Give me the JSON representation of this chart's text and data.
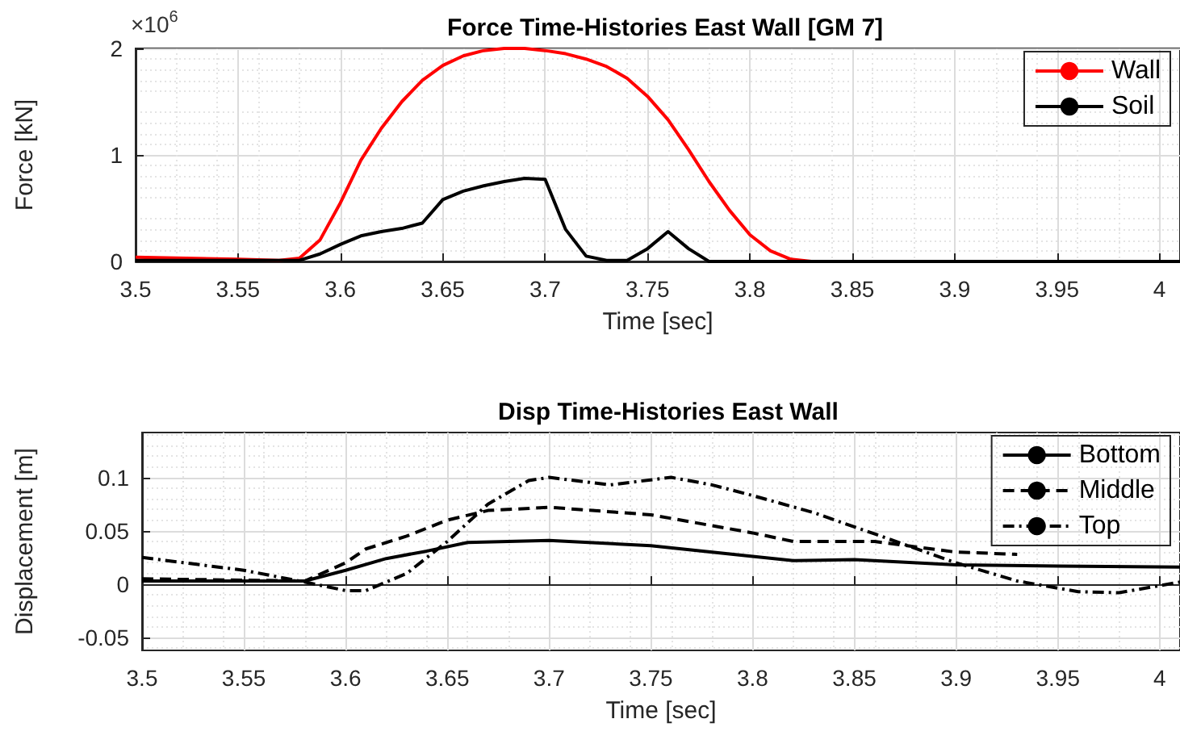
{
  "chart_data": [
    {
      "type": "line",
      "title": "Force Time-Histories East Wall [GM 7]",
      "xlabel": "Time [sec]",
      "ylabel": "Force [kN]",
      "annotations": [
        "×10$^{6}$"
      ],
      "series": [
        {
          "name": "Wall",
          "color": "#ff0000",
          "line_style": "solid",
          "x": [
            3.5,
            3.55,
            3.57,
            3.58,
            3.59,
            3.6,
            3.61,
            3.62,
            3.63,
            3.64,
            3.65,
            3.66,
            3.67,
            3.68,
            3.69,
            3.7,
            3.71,
            3.72,
            3.73,
            3.74,
            3.75,
            3.76,
            3.77,
            3.78,
            3.79,
            3.8,
            3.81,
            3.82,
            3.83,
            4.01
          ],
          "values": [
            0.04,
            0.02,
            0.01,
            0.03,
            0.2,
            0.55,
            0.95,
            1.25,
            1.5,
            1.7,
            1.84,
            1.93,
            1.98,
            2.0,
            2.0,
            1.98,
            1.95,
            1.9,
            1.83,
            1.72,
            1.55,
            1.33,
            1.05,
            0.75,
            0.48,
            0.25,
            0.1,
            0.02,
            0,
            0
          ]
        },
        {
          "name": "Soil",
          "color": "#000000",
          "line_style": "solid",
          "x": [
            3.5,
            3.58,
            3.59,
            3.6,
            3.61,
            3.62,
            3.63,
            3.64,
            3.65,
            3.66,
            3.67,
            3.68,
            3.69,
            3.7,
            3.71,
            3.72,
            3.73,
            3.74,
            3.75,
            3.76,
            3.77,
            3.78,
            4.01
          ],
          "values": [
            0.01,
            0.01,
            0.07,
            0.16,
            0.24,
            0.28,
            0.31,
            0.36,
            0.58,
            0.66,
            0.71,
            0.75,
            0.78,
            0.77,
            0.3,
            0.05,
            0.01,
            0.01,
            0.12,
            0.28,
            0.12,
            0,
            0
          ]
        }
      ],
      "xlim": [
        3.5,
        4.01
      ],
      "xticks": [
        3.5,
        3.55,
        3.6,
        3.65,
        3.7,
        3.75,
        3.8,
        3.85,
        3.9,
        3.95,
        4
      ],
      "ylim": [
        0,
        2
      ],
      "yticks": [
        0,
        1,
        2
      ],
      "grid": true,
      "legend": "top right",
      "marker": "none"
    },
    {
      "type": "line",
      "title": "Disp Time-Histories East Wall",
      "xlabel": "Time [sec]",
      "ylabel": "Displacement [m]",
      "series": [
        {
          "name": "Bottom",
          "color": "#000000",
          "line_style": "solid",
          "x": [
            3.5,
            3.58,
            3.6,
            3.62,
            3.64,
            3.66,
            3.7,
            3.75,
            3.8,
            3.82,
            3.85,
            3.9,
            3.95,
            4.01
          ],
          "values": [
            0.003,
            0.003,
            0.013,
            0.024,
            0.031,
            0.039,
            0.041,
            0.036,
            0.026,
            0.022,
            0.023,
            0.018,
            0.017,
            0.016
          ]
        },
        {
          "name": "Middle",
          "color": "#000000",
          "line_style": "dashed",
          "x": [
            3.5,
            3.58,
            3.6,
            3.61,
            3.63,
            3.65,
            3.67,
            3.7,
            3.75,
            3.8,
            3.82,
            3.86,
            3.9,
            3.93
          ],
          "values": [
            0.005,
            0.003,
            0.02,
            0.033,
            0.045,
            0.06,
            0.069,
            0.072,
            0.065,
            0.048,
            0.04,
            0.04,
            0.03,
            0.028
          ]
        },
        {
          "name": "Top",
          "color": "#000000",
          "line_style": "dashdot",
          "x": [
            3.5,
            3.55,
            3.58,
            3.6,
            3.61,
            3.63,
            3.65,
            3.67,
            3.69,
            3.7,
            3.73,
            3.76,
            3.78,
            3.8,
            3.83,
            3.86,
            3.9,
            3.93,
            3.96,
            3.98,
            4.01
          ],
          "values": [
            0.025,
            0.013,
            0.002,
            -0.006,
            -0.006,
            0.01,
            0.04,
            0.075,
            0.097,
            0.1,
            0.093,
            0.1,
            0.093,
            0.083,
            0.067,
            0.047,
            0.02,
            0.003,
            -0.007,
            -0.008,
            0.002
          ]
        }
      ],
      "xlim": [
        3.5,
        4.01
      ],
      "xticks": [
        3.5,
        3.55,
        3.6,
        3.65,
        3.7,
        3.75,
        3.8,
        3.85,
        3.9,
        3.95,
        4
      ],
      "ylim": [
        -0.062,
        0.142
      ],
      "yticks": [
        -0.05,
        0,
        0.05,
        0.1
      ],
      "grid": true,
      "legend": "top right",
      "marker": "none"
    }
  ]
}
